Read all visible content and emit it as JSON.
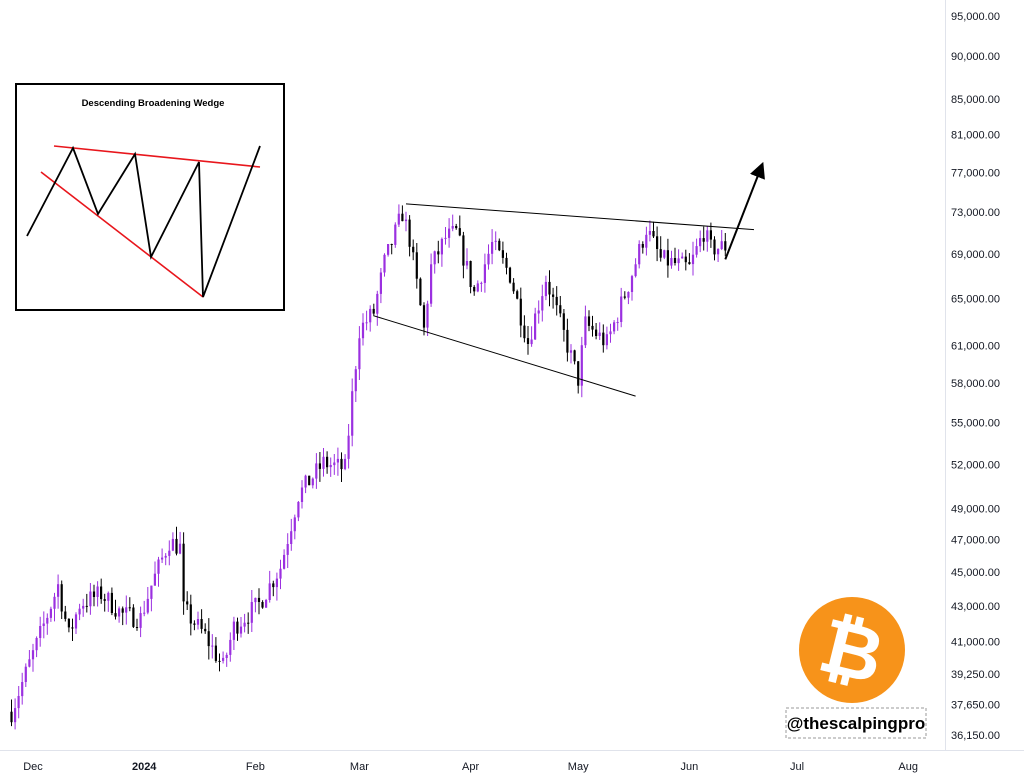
{
  "chart_data": {
    "type": "candlestick",
    "title": "",
    "xlabel": "",
    "ylabel": "",
    "y_scale": "log",
    "ylim": [
      35500,
      97000
    ],
    "y_ticks": [
      "95,000.00",
      "90,000.00",
      "85,000.00",
      "81,000.00",
      "77,000.00",
      "73,000.00",
      "69,000.00",
      "65,000.00",
      "61,000.00",
      "58,000.00",
      "55,000.00",
      "52,000.00",
      "49,000.00",
      "47,000.00",
      "45,000.00",
      "43,000.00",
      "41,000.00",
      "39,250.00",
      "37,650.00",
      "36,150.00"
    ],
    "x_ticks": [
      "Dec",
      "2024",
      "Feb",
      "Mar",
      "Apr",
      "May",
      "Jun",
      "Jul",
      "Aug"
    ],
    "date_range": [
      "2023-11-25",
      "2024-06-11"
    ],
    "up_color": "#9b30e0",
    "down_color": "#000000",
    "pattern_lines": {
      "upper_trendline": {
        "from": [
          "2024-03-14",
          73800
        ],
        "to": [
          "2024-06-19",
          71300
        ]
      },
      "lower_trendline": {
        "from": [
          "2024-03-05",
          63500
        ],
        "to": [
          "2024-05-17",
          57000
        ]
      },
      "breakout_arrow": {
        "from": [
          "2024-06-11",
          68500
        ],
        "to": [
          "2024-06-21",
          77500
        ]
      }
    },
    "inset": {
      "title": "Descending Broadening Wedge",
      "line_color": "#e8161c",
      "zigzag_color": "#000000"
    }
  },
  "watermark": {
    "handle": "@thescalpingpro",
    "logo_icon": "bitcoin-icon",
    "logo_color": "#f7931a",
    "logo_glyph": "₿"
  }
}
